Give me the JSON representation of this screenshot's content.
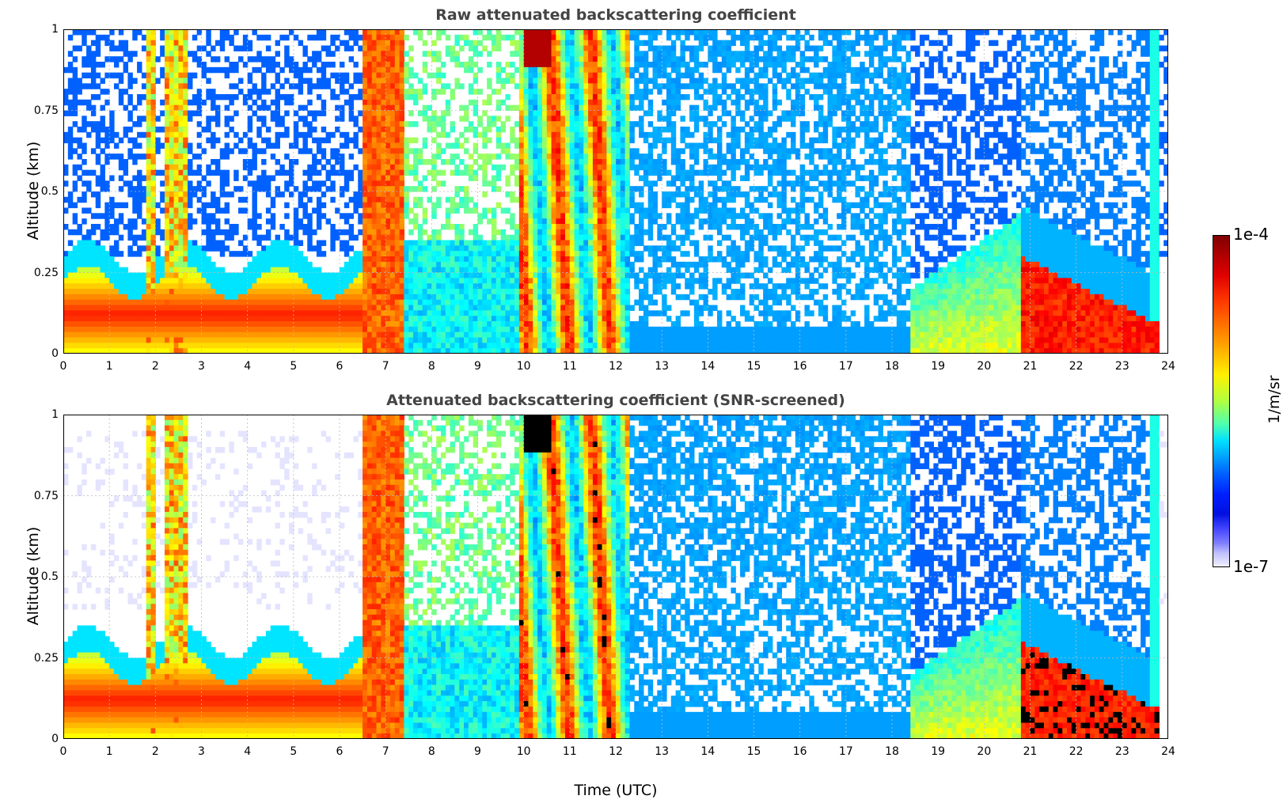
{
  "chart_data": [
    {
      "type": "heatmap",
      "title": "Raw attenuated backscattering coefficient",
      "xlabel": "",
      "ylabel": "Altitude (km)",
      "xlim": [
        0,
        24
      ],
      "ylim": [
        0,
        1
      ],
      "x_ticks": [
        "0",
        "1",
        "2",
        "3",
        "4",
        "5",
        "6",
        "7",
        "8",
        "9",
        "10",
        "11",
        "12",
        "13",
        "14",
        "15",
        "16",
        "17",
        "18",
        "19",
        "20",
        "21",
        "22",
        "23",
        "24"
      ],
      "y_ticks": [
        "0",
        "0.25",
        "0.5",
        "0.75",
        "1"
      ],
      "grid": true,
      "log_scale_colors": true,
      "features": [
        {
          "name": "boundary layer",
          "t_start": 0,
          "t_end": 6.5,
          "alt_low": 0.05,
          "alt_high": 0.25,
          "level": "high"
        },
        {
          "name": "cloud",
          "t_start": 6.5,
          "t_end": 7.4,
          "alt_low": 0,
          "alt_high": 1,
          "level": "high"
        },
        {
          "name": "cloud",
          "t_start": 9.9,
          "t_end": 12.3,
          "alt_low": 0,
          "alt_high": 1,
          "level": "high"
        },
        {
          "name": "aerosol",
          "t_start": 18.5,
          "t_end": 21.0,
          "alt_low": 0,
          "alt_high": 0.45,
          "level": "medium"
        },
        {
          "name": "boundary layer",
          "t_start": 20.8,
          "t_end": 23.8,
          "alt_low": 0.05,
          "alt_high": 0.3,
          "level": "high"
        }
      ]
    },
    {
      "type": "heatmap",
      "title": "Attenuated backscattering coefficient (SNR-screened)",
      "xlabel": "Time (UTC)",
      "ylabel": "Altitude (km)",
      "xlim": [
        0,
        24
      ],
      "ylim": [
        0,
        1
      ],
      "x_ticks": [
        "0",
        "1",
        "2",
        "3",
        "4",
        "5",
        "6",
        "7",
        "8",
        "9",
        "10",
        "11",
        "12",
        "13",
        "14",
        "15",
        "16",
        "17",
        "18",
        "19",
        "20",
        "21",
        "22",
        "23",
        "24"
      ],
      "y_ticks": [
        "0",
        "0.25",
        "0.5",
        "0.75",
        "1"
      ],
      "grid": true,
      "log_scale_colors": true
    }
  ],
  "colorbar": {
    "max_label": "1e-4",
    "min_label": "1e-7",
    "unit": "1/m/sr",
    "colormap": "jet"
  }
}
